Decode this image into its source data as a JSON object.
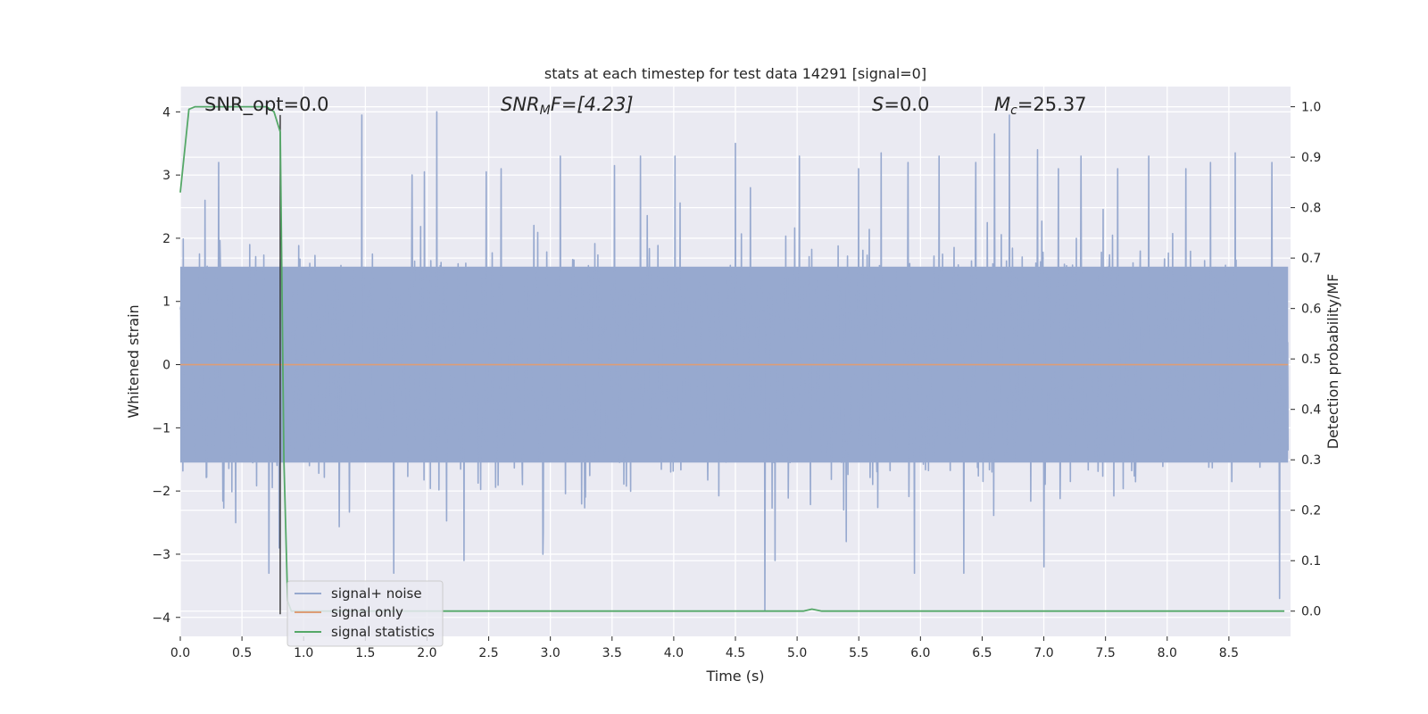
{
  "chart_data": {
    "type": "line",
    "title": "stats at each timestep for test data 14291 [signal=0]",
    "xlabel": "Time (s)",
    "ylabel_left": "Whitened strain",
    "ylabel_right": "Detection probability/MF",
    "xlim": [
      0.0,
      9.0
    ],
    "ylim_left": [
      -4.3,
      4.4
    ],
    "ylim_right": [
      -0.05,
      1.04
    ],
    "xticks": [
      "0.0",
      "0.5",
      "1.0",
      "1.5",
      "2.0",
      "2.5",
      "3.0",
      "3.5",
      "4.0",
      "4.5",
      "5.0",
      "5.5",
      "6.0",
      "6.5",
      "7.0",
      "7.5",
      "8.0",
      "8.5"
    ],
    "yticks_left": [
      "4",
      "3",
      "2",
      "1",
      "0",
      "−1",
      "−2",
      "−3",
      "−4"
    ],
    "yticks_right": [
      "1.0",
      "0.9",
      "0.8",
      "0.7",
      "0.6",
      "0.5",
      "0.4",
      "0.3",
      "0.2",
      "0.1",
      "0.0"
    ],
    "grid": true,
    "legend_position": "lower-left",
    "annotations": {
      "snr_opt": "SNR_opt=0.0",
      "snr_mf_base": "SNR",
      "snr_mf_sub": "M",
      "snr_mf_rest": "F=[4.23]",
      "s_italic": "S",
      "s_rest": "=0.0",
      "mc_base": "M",
      "mc_sub": "c",
      "mc_rest": "=25.37"
    },
    "marker_time": 0.81,
    "series": [
      {
        "name": "signal+ noise",
        "axis": "left",
        "color": "#97a9cf",
        "description_values": "whitened strain noise, approx. range -3.9 to 4.0",
        "spikes": [
          {
            "x": 0.2,
            "y": 2.6
          },
          {
            "x": 0.31,
            "y": 3.2
          },
          {
            "x": 0.45,
            "y": -2.5
          },
          {
            "x": 0.72,
            "y": -3.3
          },
          {
            "x": 0.8,
            "y": -2.9
          },
          {
            "x": 1.47,
            "y": 3.95
          },
          {
            "x": 1.73,
            "y": -3.3
          },
          {
            "x": 1.88,
            "y": 3.0
          },
          {
            "x": 1.98,
            "y": 3.05
          },
          {
            "x": 2.08,
            "y": 4.0
          },
          {
            "x": 2.3,
            "y": -3.1
          },
          {
            "x": 2.48,
            "y": 3.05
          },
          {
            "x": 2.6,
            "y": 3.1
          },
          {
            "x": 2.94,
            "y": -3.0
          },
          {
            "x": 3.08,
            "y": 3.3
          },
          {
            "x": 3.52,
            "y": 3.15
          },
          {
            "x": 3.73,
            "y": 3.3
          },
          {
            "x": 4.01,
            "y": 3.3
          },
          {
            "x": 4.5,
            "y": 3.5
          },
          {
            "x": 4.62,
            "y": 2.8
          },
          {
            "x": 4.74,
            "y": -3.9
          },
          {
            "x": 4.82,
            "y": -3.1
          },
          {
            "x": 5.02,
            "y": 3.3
          },
          {
            "x": 5.4,
            "y": -2.8
          },
          {
            "x": 5.5,
            "y": 3.1
          },
          {
            "x": 5.68,
            "y": 3.35
          },
          {
            "x": 5.9,
            "y": 3.2
          },
          {
            "x": 5.95,
            "y": -3.3
          },
          {
            "x": 6.15,
            "y": 3.3
          },
          {
            "x": 6.35,
            "y": -3.3
          },
          {
            "x": 6.45,
            "y": 3.2
          },
          {
            "x": 6.6,
            "y": 3.65
          },
          {
            "x": 6.72,
            "y": 3.95
          },
          {
            "x": 6.95,
            "y": 3.4
          },
          {
            "x": 7.0,
            "y": -3.2
          },
          {
            "x": 7.12,
            "y": 3.1
          },
          {
            "x": 7.3,
            "y": 3.3
          },
          {
            "x": 7.6,
            "y": 3.1
          },
          {
            "x": 7.85,
            "y": 3.3
          },
          {
            "x": 8.15,
            "y": 3.1
          },
          {
            "x": 8.35,
            "y": 3.2
          },
          {
            "x": 8.55,
            "y": 3.35
          },
          {
            "x": 8.85,
            "y": 3.2
          },
          {
            "x": 8.91,
            "y": -3.7
          }
        ]
      },
      {
        "name": "signal only",
        "axis": "left",
        "color": "#dd9d76",
        "points": [
          [
            0.0,
            0.0
          ],
          [
            9.0,
            0.0
          ]
        ]
      },
      {
        "name": "signal statistics",
        "axis": "right",
        "color": "#55a868",
        "points": [
          [
            0.0,
            0.83
          ],
          [
            0.07,
            0.995
          ],
          [
            0.12,
            1.0
          ],
          [
            0.2,
            1.0
          ],
          [
            0.3,
            1.0
          ],
          [
            0.4,
            1.0
          ],
          [
            0.5,
            1.0
          ],
          [
            0.6,
            1.0
          ],
          [
            0.7,
            1.0
          ],
          [
            0.76,
            0.99
          ],
          [
            0.81,
            0.95
          ],
          [
            0.84,
            0.3
          ],
          [
            0.87,
            0.02
          ],
          [
            0.9,
            0.0
          ],
          [
            1.0,
            0.0
          ],
          [
            2.0,
            0.0
          ],
          [
            3.0,
            0.0
          ],
          [
            4.0,
            0.0
          ],
          [
            4.9,
            0.0
          ],
          [
            5.05,
            0.0
          ],
          [
            5.12,
            0.004
          ],
          [
            5.2,
            0.0
          ],
          [
            6.0,
            0.0
          ],
          [
            7.0,
            0.0
          ],
          [
            8.0,
            0.0
          ],
          [
            8.95,
            0.0
          ]
        ]
      }
    ]
  }
}
